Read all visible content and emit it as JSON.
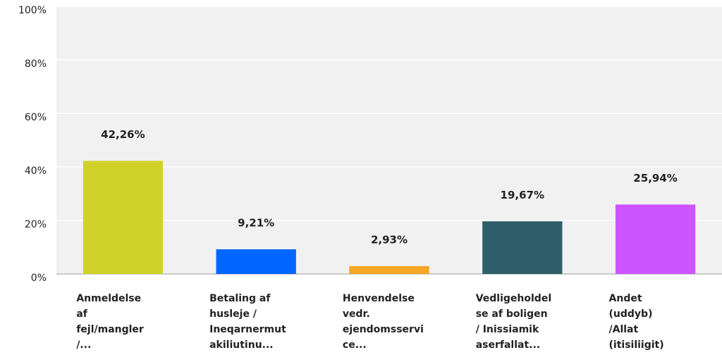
{
  "chart_data": {
    "type": "bar",
    "categories": [
      [
        "Anmeldelse",
        "af",
        "fejl/mangler",
        "/..."
      ],
      [
        "Betaling af",
        "husleje /",
        "Ineqarnermut",
        "akiliutinu..."
      ],
      [
        "Henvendelse",
        "vedr.",
        "ejendomsservi",
        "ce..."
      ],
      [
        "Vedligeholdel",
        "se af boligen",
        "/ Inissiamik",
        "aserfallat..."
      ],
      [
        "Andet",
        "(uddyb)",
        "/Allat",
        "(itisiliigit)"
      ]
    ],
    "values": [
      42.26,
      9.21,
      2.93,
      19.67,
      25.94
    ],
    "value_labels": [
      "42,26%",
      "9,21%",
      "2,93%",
      "19,67%",
      "25,94%"
    ],
    "colors": [
      "#d0d22a",
      "#0066ff",
      "#f5a623",
      "#2e5e6a",
      "#cc55ff"
    ],
    "ylim": [
      0,
      100
    ],
    "yticks": [
      {
        "value": 0,
        "label": "0%"
      },
      {
        "value": 20,
        "label": "20%"
      },
      {
        "value": 40,
        "label": "40%"
      },
      {
        "value": 60,
        "label": "60%"
      },
      {
        "value": 80,
        "label": "80%"
      },
      {
        "value": 100,
        "label": "100%"
      }
    ],
    "grid": true
  }
}
